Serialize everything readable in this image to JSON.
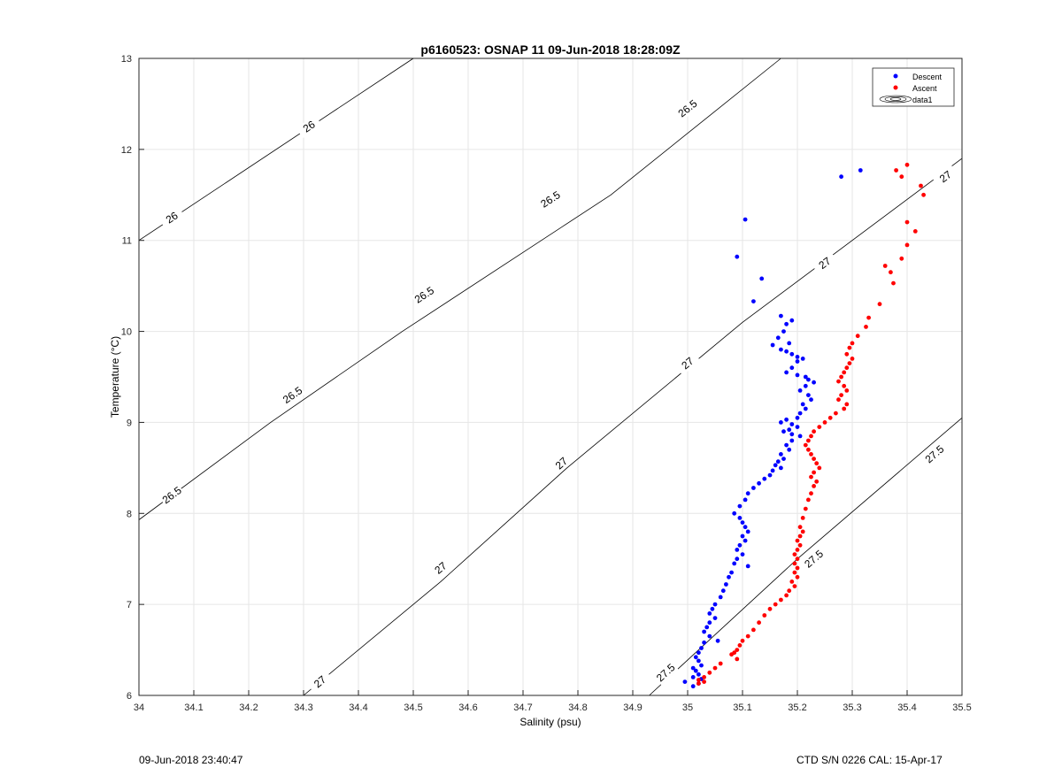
{
  "chart_data": {
    "type": "scatter",
    "title": "p6160523: OSNAP 11 09-Jun-2018 18:28:09Z",
    "xlabel": "Salinity (psu)",
    "ylabel": "Temperature (°C)",
    "xlim": [
      34,
      35.5
    ],
    "ylim": [
      6,
      13
    ],
    "xticks": [
      34,
      34.1,
      34.2,
      34.3,
      34.4,
      34.5,
      34.6,
      34.7,
      34.8,
      34.9,
      35,
      35.1,
      35.2,
      35.3,
      35.4,
      35.5
    ],
    "xtick_labels": [
      "34",
      "34.1",
      "34.2",
      "34.3",
      "34.4",
      "34.5",
      "34.6",
      "34.7",
      "34.8",
      "34.9",
      "35",
      "35.1",
      "35.2",
      "35.3",
      "35.4",
      "35.5"
    ],
    "yticks": [
      6,
      7,
      8,
      9,
      10,
      11,
      12,
      13
    ],
    "ytick_labels": [
      "6",
      "7",
      "8",
      "9",
      "10",
      "11",
      "12",
      "13"
    ],
    "grid": true,
    "legend_position": "top-right",
    "legend": [
      "Descent",
      "Ascent",
      "data1"
    ],
    "colors": {
      "descent": "#0000ff",
      "ascent": "#ff0000",
      "contour": "#000000",
      "grid": "#e6e6e6"
    },
    "contours": [
      {
        "level": "26",
        "points": [
          [
            34.0,
            11.0
          ],
          [
            34.5,
            13.0
          ]
        ],
        "labels": [
          [
            34.06,
            11.25
          ],
          [
            34.31,
            12.25
          ]
        ]
      },
      {
        "level": "26.5",
        "points": [
          [
            34.0,
            7.93
          ],
          [
            34.24,
            9.0
          ],
          [
            34.48,
            10.0
          ],
          [
            34.86,
            11.5
          ],
          [
            35.17,
            13.0
          ]
        ],
        "labels": [
          [
            34.06,
            8.2
          ],
          [
            34.28,
            9.3
          ],
          [
            34.52,
            10.4
          ],
          [
            34.75,
            11.45
          ],
          [
            35.0,
            12.45
          ]
        ]
      },
      {
        "level": "27",
        "points": [
          [
            34.3,
            6.0
          ],
          [
            34.55,
            7.25
          ],
          [
            34.78,
            8.5
          ],
          [
            35.1,
            10.1
          ],
          [
            35.5,
            11.9
          ]
        ],
        "labels": [
          [
            34.33,
            6.15
          ],
          [
            34.55,
            7.4
          ],
          [
            34.77,
            8.55
          ],
          [
            35.0,
            9.65
          ],
          [
            35.25,
            10.75
          ],
          [
            35.47,
            11.7
          ]
        ]
      },
      {
        "level": "27.5",
        "points": [
          [
            34.93,
            6.0
          ],
          [
            35.2,
            7.5
          ],
          [
            35.5,
            9.05
          ]
        ],
        "labels": [
          [
            34.96,
            6.25
          ],
          [
            35.23,
            7.5
          ],
          [
            35.45,
            8.65
          ]
        ]
      }
    ],
    "series": [
      {
        "name": "Descent",
        "color": "#0000ff",
        "points": [
          [
            35.315,
            11.77
          ],
          [
            35.28,
            11.7
          ],
          [
            35.105,
            11.23
          ],
          [
            35.09,
            10.82
          ],
          [
            35.135,
            10.58
          ],
          [
            35.12,
            10.33
          ],
          [
            35.17,
            10.17
          ],
          [
            35.18,
            10.08
          ],
          [
            35.19,
            10.12
          ],
          [
            35.175,
            10.0
          ],
          [
            35.165,
            9.93
          ],
          [
            35.185,
            9.87
          ],
          [
            35.155,
            9.85
          ],
          [
            35.17,
            9.8
          ],
          [
            35.18,
            9.78
          ],
          [
            35.19,
            9.75
          ],
          [
            35.2,
            9.72
          ],
          [
            35.21,
            9.7
          ],
          [
            35.2,
            9.67
          ],
          [
            35.19,
            9.6
          ],
          [
            35.18,
            9.55
          ],
          [
            35.2,
            9.52
          ],
          [
            35.215,
            9.5
          ],
          [
            35.22,
            9.47
          ],
          [
            35.23,
            9.44
          ],
          [
            35.215,
            9.4
          ],
          [
            35.205,
            9.35
          ],
          [
            35.22,
            9.3
          ],
          [
            35.225,
            9.25
          ],
          [
            35.21,
            9.2
          ],
          [
            35.215,
            9.15
          ],
          [
            35.205,
            9.1
          ],
          [
            35.2,
            9.05
          ],
          [
            35.18,
            9.03
          ],
          [
            35.17,
            9.0
          ],
          [
            35.19,
            8.98
          ],
          [
            35.2,
            8.95
          ],
          [
            35.185,
            8.92
          ],
          [
            35.175,
            8.9
          ],
          [
            35.19,
            8.87
          ],
          [
            35.205,
            8.85
          ],
          [
            35.19,
            8.8
          ],
          [
            35.18,
            8.75
          ],
          [
            35.185,
            8.7
          ],
          [
            35.17,
            8.65
          ],
          [
            35.175,
            8.6
          ],
          [
            35.165,
            8.57
          ],
          [
            35.16,
            8.53
          ],
          [
            35.17,
            8.5
          ],
          [
            35.155,
            8.47
          ],
          [
            35.15,
            8.42
          ],
          [
            35.14,
            8.38
          ],
          [
            35.13,
            8.33
          ],
          [
            35.12,
            8.28
          ],
          [
            35.11,
            8.22
          ],
          [
            35.105,
            8.15
          ],
          [
            35.095,
            8.08
          ],
          [
            35.085,
            8.0
          ],
          [
            35.095,
            7.95
          ],
          [
            35.1,
            7.9
          ],
          [
            35.105,
            7.85
          ],
          [
            35.11,
            7.8
          ],
          [
            35.1,
            7.75
          ],
          [
            35.105,
            7.7
          ],
          [
            35.095,
            7.65
          ],
          [
            35.09,
            7.6
          ],
          [
            35.1,
            7.55
          ],
          [
            35.09,
            7.5
          ],
          [
            35.085,
            7.45
          ],
          [
            35.11,
            7.42
          ],
          [
            35.08,
            7.35
          ],
          [
            35.075,
            7.3
          ],
          [
            35.07,
            7.22
          ],
          [
            35.065,
            7.15
          ],
          [
            35.06,
            7.08
          ],
          [
            35.05,
            7.0
          ],
          [
            35.045,
            6.95
          ],
          [
            35.04,
            6.9
          ],
          [
            35.05,
            6.85
          ],
          [
            35.04,
            6.8
          ],
          [
            35.035,
            6.75
          ],
          [
            35.03,
            6.7
          ],
          [
            35.04,
            6.65
          ],
          [
            35.055,
            6.6
          ],
          [
            35.03,
            6.58
          ],
          [
            35.025,
            6.52
          ],
          [
            35.02,
            6.47
          ],
          [
            35.015,
            6.42
          ],
          [
            35.02,
            6.38
          ],
          [
            35.025,
            6.33
          ],
          [
            35.01,
            6.3
          ],
          [
            35.015,
            6.27
          ],
          [
            35.02,
            6.23
          ],
          [
            35.01,
            6.2
          ],
          [
            35.025,
            6.18
          ],
          [
            35.02,
            6.13
          ],
          [
            34.995,
            6.15
          ],
          [
            35.01,
            6.1
          ]
        ]
      },
      {
        "name": "Ascent",
        "color": "#ff0000",
        "points": [
          [
            35.4,
            11.83
          ],
          [
            35.38,
            11.77
          ],
          [
            35.39,
            11.7
          ],
          [
            35.425,
            11.6
          ],
          [
            35.43,
            11.5
          ],
          [
            35.4,
            11.2
          ],
          [
            35.415,
            11.1
          ],
          [
            35.4,
            10.95
          ],
          [
            35.39,
            10.8
          ],
          [
            35.36,
            10.72
          ],
          [
            35.37,
            10.65
          ],
          [
            35.375,
            10.53
          ],
          [
            35.35,
            10.3
          ],
          [
            35.33,
            10.15
          ],
          [
            35.325,
            10.05
          ],
          [
            35.31,
            9.95
          ],
          [
            35.3,
            9.87
          ],
          [
            35.295,
            9.82
          ],
          [
            35.29,
            9.75
          ],
          [
            35.3,
            9.7
          ],
          [
            35.295,
            9.65
          ],
          [
            35.29,
            9.6
          ],
          [
            35.285,
            9.55
          ],
          [
            35.28,
            9.5
          ],
          [
            35.275,
            9.45
          ],
          [
            35.285,
            9.4
          ],
          [
            35.29,
            9.35
          ],
          [
            35.28,
            9.3
          ],
          [
            35.275,
            9.25
          ],
          [
            35.29,
            9.2
          ],
          [
            35.285,
            9.15
          ],
          [
            35.27,
            9.1
          ],
          [
            35.26,
            9.05
          ],
          [
            35.25,
            9.0
          ],
          [
            35.24,
            8.95
          ],
          [
            35.23,
            8.9
          ],
          [
            35.225,
            8.85
          ],
          [
            35.22,
            8.8
          ],
          [
            35.215,
            8.75
          ],
          [
            35.22,
            8.7
          ],
          [
            35.225,
            8.65
          ],
          [
            35.23,
            8.6
          ],
          [
            35.235,
            8.55
          ],
          [
            35.24,
            8.5
          ],
          [
            35.23,
            8.45
          ],
          [
            35.225,
            8.4
          ],
          [
            35.235,
            8.35
          ],
          [
            35.23,
            8.3
          ],
          [
            35.225,
            8.22
          ],
          [
            35.22,
            8.15
          ],
          [
            35.215,
            8.05
          ],
          [
            35.21,
            7.95
          ],
          [
            35.205,
            7.85
          ],
          [
            35.21,
            7.8
          ],
          [
            35.205,
            7.75
          ],
          [
            35.2,
            7.7
          ],
          [
            35.205,
            7.65
          ],
          [
            35.2,
            7.6
          ],
          [
            35.195,
            7.55
          ],
          [
            35.2,
            7.5
          ],
          [
            35.195,
            7.45
          ],
          [
            35.2,
            7.4
          ],
          [
            35.195,
            7.35
          ],
          [
            35.2,
            7.3
          ],
          [
            35.19,
            7.25
          ],
          [
            35.195,
            7.2
          ],
          [
            35.185,
            7.15
          ],
          [
            35.18,
            7.1
          ],
          [
            35.17,
            7.05
          ],
          [
            35.16,
            7.0
          ],
          [
            35.15,
            6.95
          ],
          [
            35.14,
            6.88
          ],
          [
            35.13,
            6.8
          ],
          [
            35.12,
            6.72
          ],
          [
            35.11,
            6.65
          ],
          [
            35.1,
            6.6
          ],
          [
            35.095,
            6.55
          ],
          [
            35.09,
            6.5
          ],
          [
            35.085,
            6.47
          ],
          [
            35.08,
            6.45
          ],
          [
            35.09,
            6.4
          ],
          [
            35.06,
            6.35
          ],
          [
            35.05,
            6.3
          ],
          [
            35.04,
            6.25
          ],
          [
            35.03,
            6.2
          ],
          [
            35.02,
            6.17
          ],
          [
            35.03,
            6.15
          ],
          [
            35.02,
            6.13
          ]
        ]
      }
    ]
  },
  "footer": {
    "left": "09-Jun-2018 23:40:47",
    "right": "CTD S/N 0226  CAL: 15-Apr-17"
  }
}
